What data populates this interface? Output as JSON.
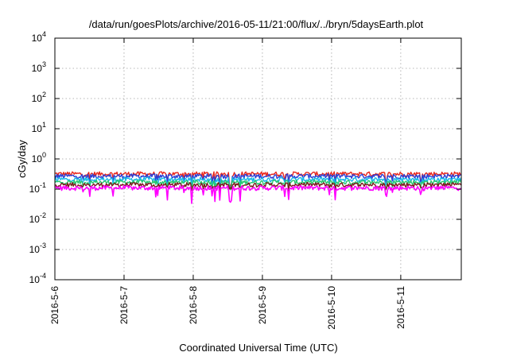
{
  "chart_data": {
    "type": "line",
    "title": "/data/run/goesPlots/archive/2016-05-11/21:00/flux/../bryn/5daysEarth.plot",
    "xlabel": "Coordinated Universal Time (UTC)",
    "ylabel": "cGy/day",
    "yscale": "log",
    "ylim": [
      0.0001,
      10000
    ],
    "xlim": [
      "2016-05-06 00:00",
      "2016-05-11 21:00"
    ],
    "grid": true,
    "x_ticks": [
      "2016-5-6",
      "2016-5-7",
      "2016-5-8",
      "2016-5-9",
      "2016-5-10",
      "2016-5-11"
    ],
    "y_ticks": [
      {
        "value": 0.0001,
        "base": "10",
        "exp": "-4"
      },
      {
        "value": 0.001,
        "base": "10",
        "exp": "-3"
      },
      {
        "value": 0.01,
        "base": "10",
        "exp": "-2"
      },
      {
        "value": 0.1,
        "base": "10",
        "exp": "-1"
      },
      {
        "value": 1,
        "base": "10",
        "exp": "0"
      },
      {
        "value": 10,
        "base": "10",
        "exp": "1"
      },
      {
        "value": 100,
        "base": "10",
        "exp": "2"
      },
      {
        "value": 1000,
        "base": "10",
        "exp": "3"
      },
      {
        "value": 10000,
        "base": "10",
        "exp": "4"
      }
    ],
    "series": [
      {
        "color": "#e8261c",
        "base": 0.32,
        "dip": 0.5
      },
      {
        "color": "#2a3fd6",
        "base": 0.27,
        "dip": 0.45
      },
      {
        "color": "#16b8e8",
        "base": 0.21,
        "dip": 0.4
      },
      {
        "color": "#28c76f",
        "base": 0.17,
        "dip": 0.3
      },
      {
        "color": "#7a1a1a",
        "base": 0.14,
        "dip": 0.25
      },
      {
        "color": "#ff00ff",
        "base": 0.11,
        "dip": 0.6
      }
    ]
  }
}
